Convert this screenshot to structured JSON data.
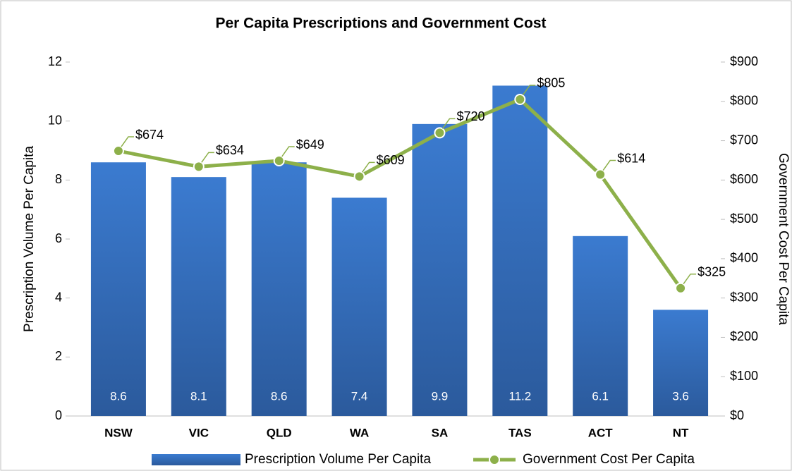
{
  "chart_data": {
    "type": "combo",
    "title": "Per Capita Prescriptions and Government Cost",
    "categories": [
      "NSW",
      "VIC",
      "QLD",
      "WA",
      "SA",
      "TAS",
      "ACT",
      "NT"
    ],
    "ylabel": "Prescription Volume Per Capita",
    "y2label": "Government Cost Per Capita",
    "ylim": [
      0,
      12
    ],
    "yticks": [
      0,
      2,
      4,
      6,
      8,
      10,
      12
    ],
    "y2lim": [
      0,
      900
    ],
    "y2ticks": [
      {
        "value": 0,
        "label": "$0"
      },
      {
        "value": 100,
        "label": "$100"
      },
      {
        "value": 200,
        "label": "$200"
      },
      {
        "value": 300,
        "label": "$300"
      },
      {
        "value": 400,
        "label": "$400"
      },
      {
        "value": 500,
        "label": "$500"
      },
      {
        "value": 600,
        "label": "$600"
      },
      {
        "value": 700,
        "label": "$700"
      },
      {
        "value": 800,
        "label": "$800"
      },
      {
        "value": 900,
        "label": "$900"
      }
    ],
    "legend": "bottom",
    "series": [
      {
        "name": "Prescription Volume Per Capita",
        "type": "bar",
        "color": "#3a76c6",
        "values": [
          8.6,
          8.1,
          8.6,
          7.4,
          9.9,
          11.2,
          6.1,
          3.6
        ]
      },
      {
        "name": "Government Cost Per Capita",
        "type": "line",
        "axis": "y2",
        "color": "#8db04a",
        "label_color": "#6f9a2e",
        "values": [
          674,
          634,
          649,
          609,
          720,
          805,
          614,
          325
        ],
        "value_labels": [
          "$674",
          "$634",
          "$649",
          "$609",
          "$720",
          "$805",
          "$614",
          "$325"
        ]
      }
    ]
  }
}
